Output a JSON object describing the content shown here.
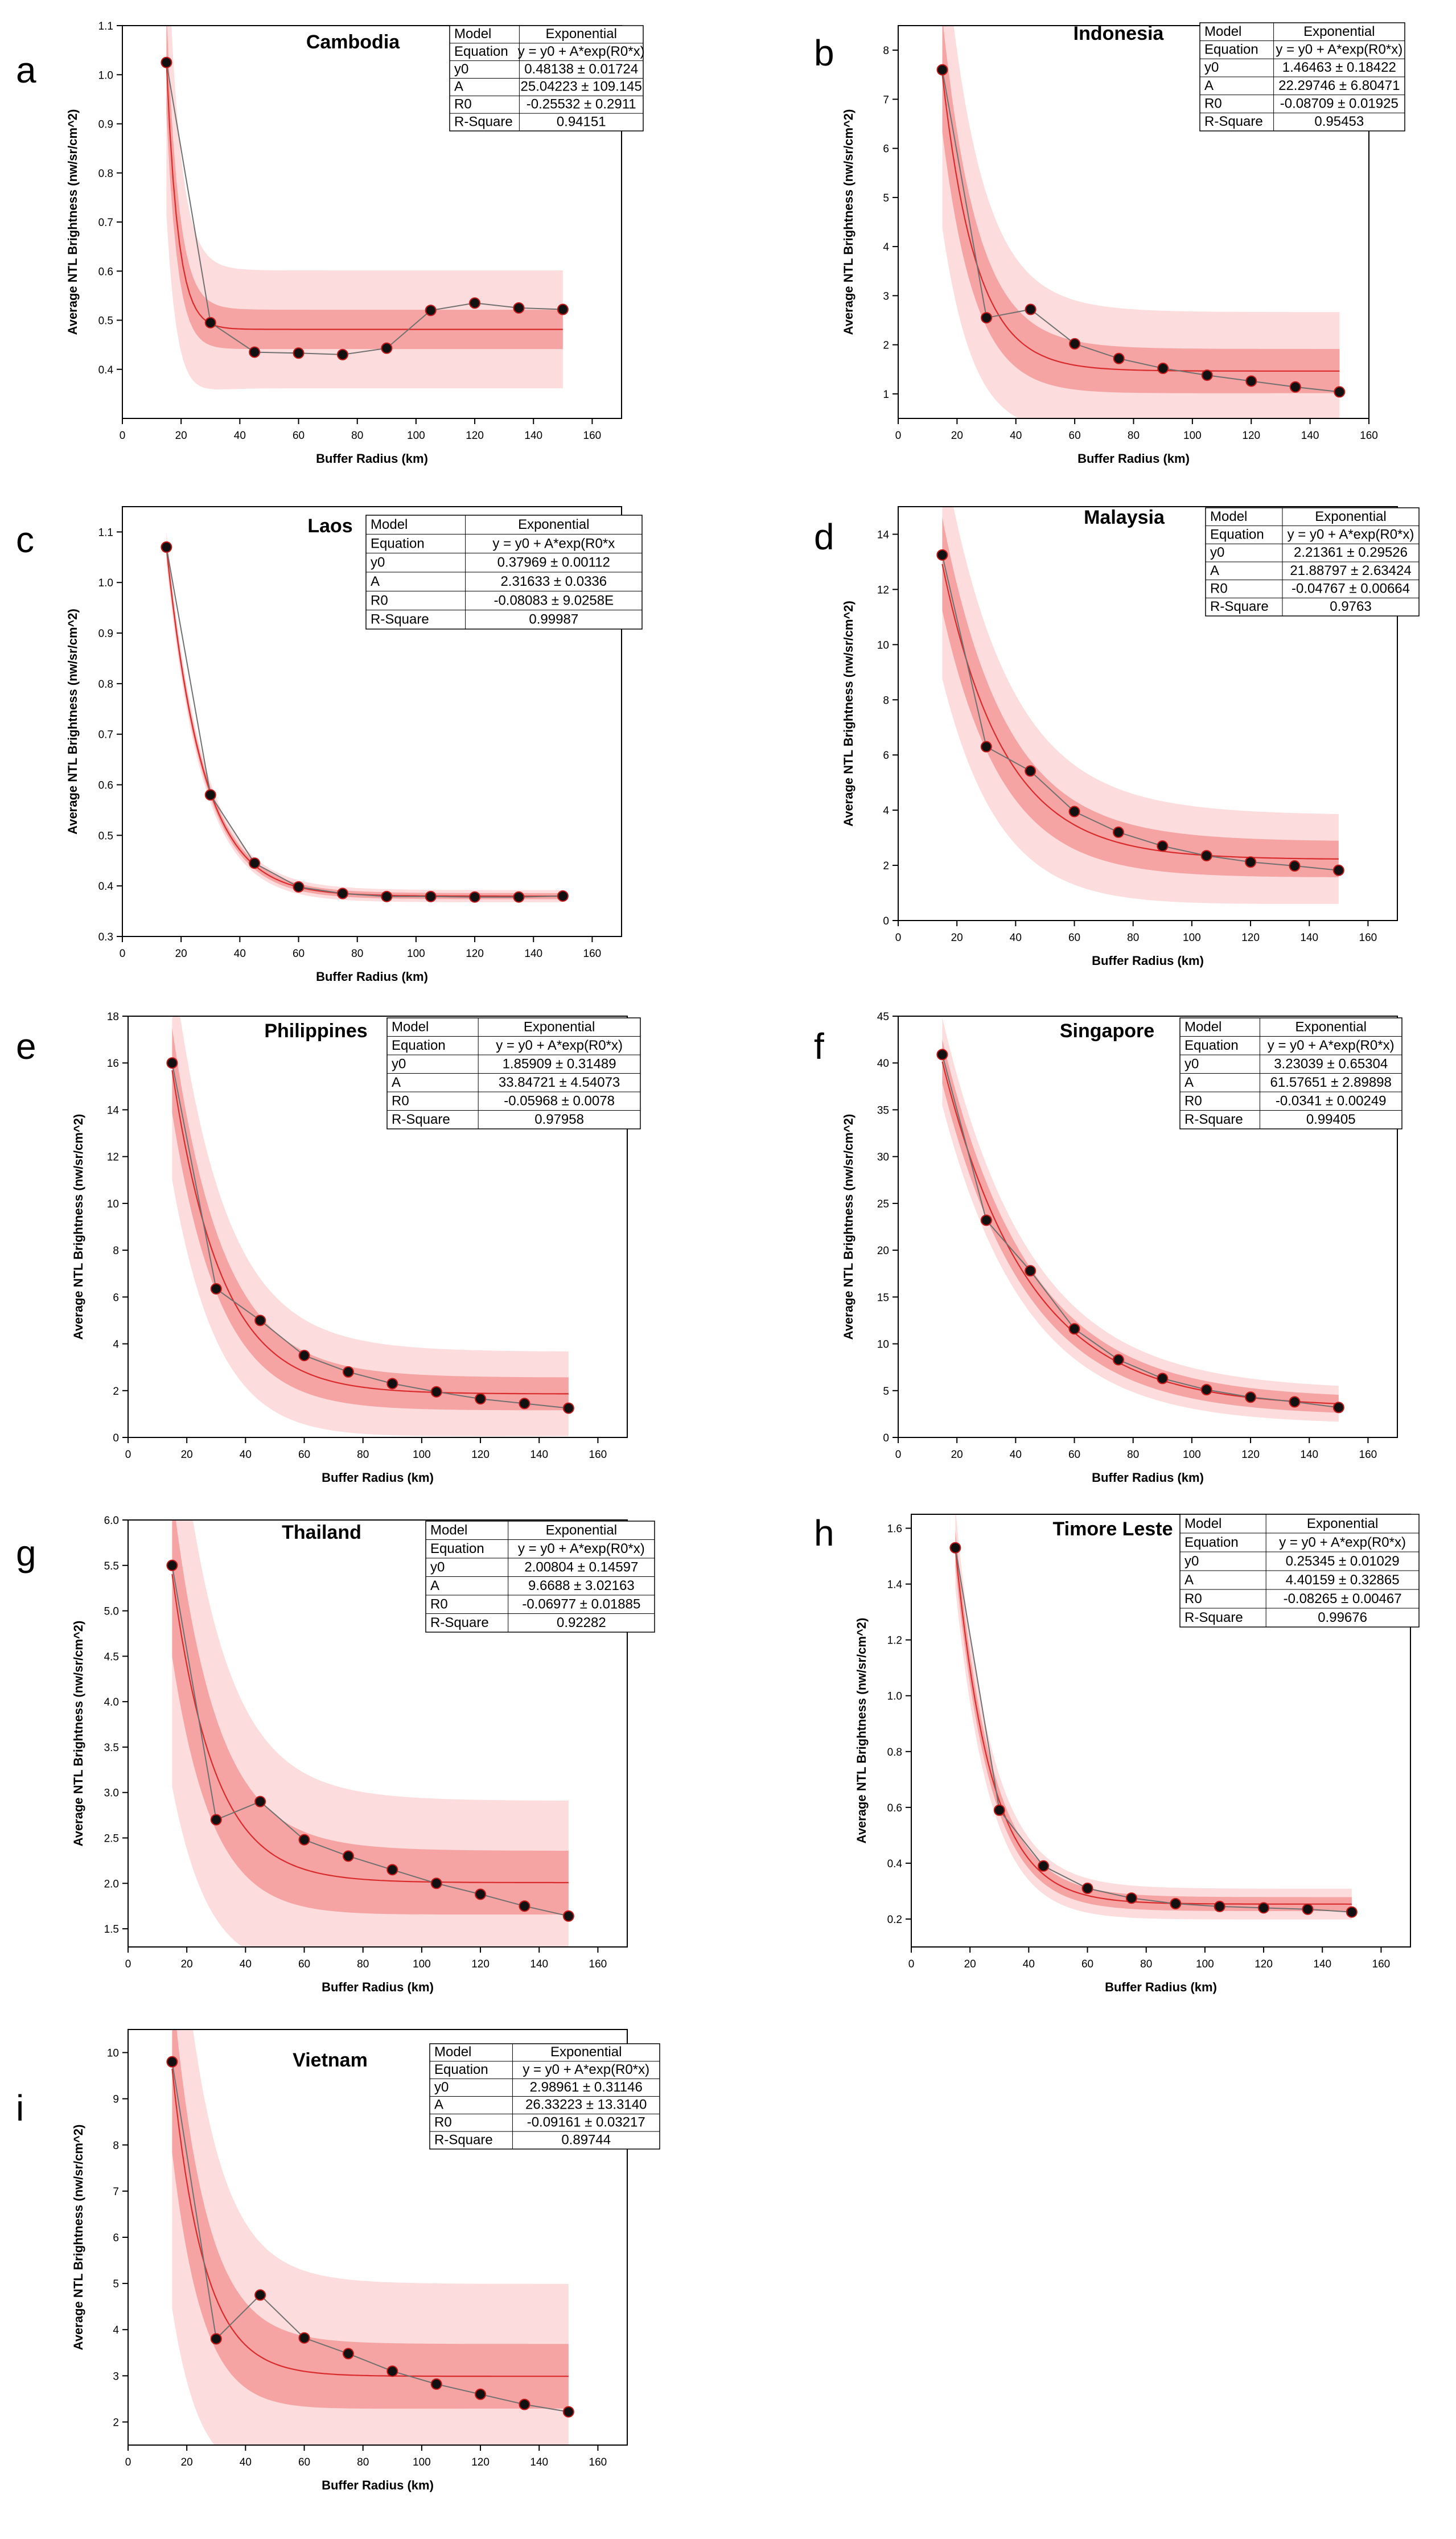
{
  "chart_data": [
    {
      "type": "scatter",
      "panel": "a",
      "title": "Cambodia",
      "xlabel": "Buffer Radius (km)",
      "ylabel": "Average NTL Brightness (nw/sr/cm^2)",
      "xlim": [
        0,
        170
      ],
      "ylim": [
        0.3,
        1.1
      ],
      "xticks": [
        0,
        20,
        40,
        60,
        80,
        100,
        120,
        140,
        160
      ],
      "yticks": [
        0.4,
        0.5,
        0.6,
        0.7,
        0.8,
        0.9,
        1.0,
        1.1
      ],
      "yfmt": 1,
      "x": [
        15,
        30,
        45,
        60,
        75,
        90,
        105,
        120,
        135,
        150
      ],
      "y": [
        1.025,
        0.495,
        0.435,
        0.433,
        0.43,
        0.443,
        0.52,
        0.535,
        0.525,
        0.522
      ],
      "fit": {
        "y0": 0.48138,
        "A": 25.04223,
        "R0": -0.25532,
        "confidence": 0.04,
        "prediction": 0.12
      },
      "table": [
        [
          "Model",
          "Exponential"
        ],
        [
          "Equation",
          "y = y0 + A*exp(R0*x)"
        ],
        [
          "y0",
          "0.48138 ± 0.01724"
        ],
        [
          "A",
          "25.04223 ± 109.145"
        ],
        [
          "R0",
          "-0.25532 ± 0.2911"
        ],
        [
          "R-Square",
          "0.94151"
        ]
      ]
    },
    {
      "type": "scatter",
      "panel": "b",
      "title": "Indonesia",
      "xlabel": "Buffer Radius (km)",
      "ylabel": "Average NTL Brightness (nw/sr/cm^2)",
      "xlim": [
        0,
        160
      ],
      "ylim": [
        0.5,
        8.5
      ],
      "xticks": [
        0,
        20,
        40,
        60,
        80,
        100,
        120,
        140,
        160
      ],
      "yticks": [
        1,
        2,
        3,
        4,
        5,
        6,
        7,
        8
      ],
      "yfmt": 0,
      "x": [
        15,
        30,
        45,
        60,
        75,
        90,
        105,
        120,
        135,
        150
      ],
      "y": [
        7.6,
        2.55,
        2.72,
        2.02,
        1.72,
        1.52,
        1.38,
        1.26,
        1.14,
        1.04
      ],
      "fit": {
        "y0": 1.46463,
        "A": 22.29746,
        "R0": -0.08709,
        "confidence": 0.45,
        "prediction": 1.2
      },
      "table": [
        [
          "Model",
          "Exponential"
        ],
        [
          "Equation",
          "y = y0 + A*exp(R0*x)"
        ],
        [
          "y0",
          "1.46463 ± 0.18422"
        ],
        [
          "A",
          "22.29746 ± 6.80471"
        ],
        [
          "R0",
          "-0.08709 ± 0.01925"
        ],
        [
          "R-Square",
          "0.95453"
        ]
      ]
    },
    {
      "type": "scatter",
      "panel": "c",
      "title": "Laos",
      "xlabel": "Buffer Radius (km)",
      "ylabel": "Average NTL Brightness (nw/sr/cm^2)",
      "xlim": [
        0,
        170
      ],
      "ylim": [
        0.3,
        1.15
      ],
      "xticks": [
        0,
        20,
        40,
        60,
        80,
        100,
        120,
        140,
        160
      ],
      "yticks": [
        0.3,
        0.4,
        0.5,
        0.6,
        0.7,
        0.8,
        0.9,
        1.0,
        1.1
      ],
      "yfmt": 1,
      "x": [
        15,
        30,
        45,
        60,
        75,
        90,
        105,
        120,
        135,
        150
      ],
      "y": [
        1.07,
        0.58,
        0.445,
        0.398,
        0.385,
        0.379,
        0.379,
        0.378,
        0.378,
        0.38
      ],
      "fit": {
        "y0": 0.37969,
        "A": 2.31633,
        "R0": -0.08083,
        "confidence": 0.006,
        "prediction": 0.012
      },
      "table": [
        [
          "Model",
          "Exponential"
        ],
        [
          "Equation",
          "y = y0 + A*exp(R0*x"
        ],
        [
          "y0",
          "0.37969 ± 0.00112"
        ],
        [
          "A",
          "2.31633 ± 0.0336"
        ],
        [
          "R0",
          "-0.08083 ± 9.0258E"
        ],
        [
          "R-Square",
          "0.99987"
        ]
      ]
    },
    {
      "type": "scatter",
      "panel": "d",
      "title": "Malaysia",
      "xlabel": "Buffer Radius (km)",
      "ylabel": "Average NTL Brightness (nw/sr/cm^2)",
      "xlim": [
        0,
        170
      ],
      "ylim": [
        0,
        15
      ],
      "xticks": [
        0,
        20,
        40,
        60,
        80,
        100,
        120,
        140,
        160
      ],
      "yticks": [
        0,
        2,
        4,
        6,
        8,
        10,
        12,
        14
      ],
      "yfmt": 0,
      "x": [
        15,
        30,
        45,
        60,
        75,
        90,
        105,
        120,
        135,
        150
      ],
      "y": [
        13.25,
        6.3,
        5.42,
        3.95,
        3.2,
        2.7,
        2.35,
        2.12,
        1.98,
        1.82
      ],
      "fit": {
        "y0": 2.21361,
        "A": 21.88797,
        "R0": -0.04767,
        "confidence": 0.65,
        "prediction": 1.6
      },
      "table": [
        [
          "Model",
          "Exponential"
        ],
        [
          "Equation",
          "y = y0 + A*exp(R0*x)"
        ],
        [
          "y0",
          "2.21361 ± 0.29526"
        ],
        [
          "A",
          "21.88797 ± 2.63424"
        ],
        [
          "R0",
          "-0.04767 ± 0.00664"
        ],
        [
          "R-Square",
          "0.9763"
        ]
      ]
    },
    {
      "type": "scatter",
      "panel": "e",
      "title": "Philippines",
      "xlabel": "Buffer Radius (km)",
      "ylabel": "Average NTL Brightness (nw/sr/cm^2)",
      "xlim": [
        0,
        170
      ],
      "ylim": [
        0,
        18
      ],
      "xticks": [
        0,
        20,
        40,
        60,
        80,
        100,
        120,
        140,
        160
      ],
      "yticks": [
        0,
        2,
        4,
        6,
        8,
        10,
        12,
        14,
        16,
        18
      ],
      "yfmt": 0,
      "x": [
        15,
        30,
        45,
        60,
        75,
        90,
        105,
        120,
        135,
        150
      ],
      "y": [
        16.0,
        6.35,
        5.0,
        3.5,
        2.8,
        2.3,
        1.95,
        1.65,
        1.45,
        1.25
      ],
      "fit": {
        "y0": 1.85909,
        "A": 33.84721,
        "R0": -0.05968,
        "confidence": 0.7,
        "prediction": 1.8
      },
      "table": [
        [
          "Model",
          "Exponential"
        ],
        [
          "Equation",
          "y = y0 + A*exp(R0*x)"
        ],
        [
          "y0",
          "1.85909 ± 0.31489"
        ],
        [
          "A",
          "33.84721 ± 4.54073"
        ],
        [
          "R0",
          "-0.05968 ± 0.0078"
        ],
        [
          "R-Square",
          "0.97958"
        ]
      ]
    },
    {
      "type": "scatter",
      "panel": "f",
      "title": "Singapore",
      "xlabel": "Buffer Radius (km)",
      "ylabel": "Average NTL Brightness (nw/sr/cm^2)",
      "xlim": [
        0,
        170
      ],
      "ylim": [
        0,
        45
      ],
      "xticks": [
        0,
        20,
        40,
        60,
        80,
        100,
        120,
        140,
        160
      ],
      "yticks": [
        0,
        5,
        10,
        15,
        20,
        25,
        30,
        35,
        40,
        45
      ],
      "yfmt": 0,
      "x": [
        15,
        30,
        45,
        60,
        75,
        90,
        105,
        120,
        135,
        150
      ],
      "y": [
        40.9,
        23.2,
        17.8,
        11.6,
        8.3,
        6.3,
        5.1,
        4.3,
        3.8,
        3.2
      ],
      "fit": {
        "y0": 3.23039,
        "A": 61.57651,
        "R0": -0.0341,
        "confidence": 0.9,
        "prediction": 1.8
      },
      "table": [
        [
          "Model",
          "Exponential"
        ],
        [
          "Equation",
          "y = y0 + A*exp(R0*x)"
        ],
        [
          "y0",
          "3.23039 ± 0.65304"
        ],
        [
          "A",
          "61.57651 ± 2.89898"
        ],
        [
          "R0",
          "-0.0341 ± 0.00249"
        ],
        [
          "R-Square",
          "0.99405"
        ]
      ]
    },
    {
      "type": "scatter",
      "panel": "g",
      "title": "Thailand",
      "xlabel": "Buffer Radius (km)",
      "ylabel": "Average NTL Brightness (nw/sr/cm^2)",
      "xlim": [
        0,
        170
      ],
      "ylim": [
        1.3,
        6.0
      ],
      "xticks": [
        0,
        20,
        40,
        60,
        80,
        100,
        120,
        140,
        160
      ],
      "yticks": [
        1.5,
        2.0,
        2.5,
        3.0,
        3.5,
        4.0,
        4.5,
        5.0,
        5.5,
        6.0
      ],
      "yfmt": 1,
      "x": [
        15,
        30,
        45,
        60,
        75,
        90,
        105,
        120,
        135,
        150
      ],
      "y": [
        5.5,
        2.7,
        2.9,
        2.48,
        2.3,
        2.15,
        2.0,
        1.88,
        1.75,
        1.64
      ],
      "fit": {
        "y0": 2.00804,
        "A": 9.6688,
        "R0": -0.06977,
        "confidence": 0.35,
        "prediction": 0.9
      },
      "table": [
        [
          "Model",
          "Exponential"
        ],
        [
          "Equation",
          "y = y0 + A*exp(R0*x)"
        ],
        [
          "y0",
          "2.00804 ± 0.14597"
        ],
        [
          "A",
          "9.6688 ± 3.02163"
        ],
        [
          "R0",
          "-0.06977 ± 0.01885"
        ],
        [
          "R-Square",
          "0.92282"
        ]
      ]
    },
    {
      "type": "scatter",
      "panel": "h",
      "title": "Timore Leste",
      "xlabel": "Buffer Radius (km)",
      "ylabel": "Average NTL Brightness (nw/sr/cm^2)",
      "xlim": [
        0,
        170
      ],
      "ylim": [
        0.1,
        1.65
      ],
      "xticks": [
        0,
        20,
        40,
        60,
        80,
        100,
        120,
        140,
        160
      ],
      "yticks": [
        0.2,
        0.4,
        0.6,
        0.8,
        1.0,
        1.2,
        1.4,
        1.6
      ],
      "yfmt": 1,
      "x": [
        15,
        30,
        45,
        60,
        75,
        90,
        105,
        120,
        135,
        150
      ],
      "y": [
        1.53,
        0.59,
        0.39,
        0.31,
        0.275,
        0.255,
        0.245,
        0.24,
        0.235,
        0.225
      ],
      "fit": {
        "y0": 0.25345,
        "A": 4.40159,
        "R0": -0.08265,
        "confidence": 0.025,
        "prediction": 0.055
      },
      "table": [
        [
          "Model",
          "Exponential"
        ],
        [
          "Equation",
          "y = y0 + A*exp(R0*x)"
        ],
        [
          "y0",
          "0.25345 ± 0.01029"
        ],
        [
          "A",
          "4.40159 ± 0.32865"
        ],
        [
          "R0",
          "-0.08265 ± 0.00467"
        ],
        [
          "R-Square",
          "0.99676"
        ]
      ]
    },
    {
      "type": "scatter",
      "panel": "i",
      "title": "Vietnam",
      "xlabel": "Buffer Radius (km)",
      "ylabel": "Average NTL Brightness (nw/sr/cm^2)",
      "xlim": [
        0,
        170
      ],
      "ylim": [
        1.5,
        10.5
      ],
      "xticks": [
        0,
        20,
        40,
        60,
        80,
        100,
        120,
        140,
        160
      ],
      "yticks": [
        2,
        3,
        4,
        5,
        6,
        7,
        8,
        9,
        10
      ],
      "yfmt": 0,
      "x": [
        15,
        30,
        45,
        60,
        75,
        90,
        105,
        120,
        135,
        150
      ],
      "y": [
        9.8,
        3.8,
        4.75,
        3.82,
        3.48,
        3.1,
        2.82,
        2.6,
        2.38,
        2.22
      ],
      "fit": {
        "y0": 2.98961,
        "A": 26.33223,
        "R0": -0.09161,
        "confidence": 0.7,
        "prediction": 2.0
      },
      "table": [
        [
          "Model",
          "Exponential"
        ],
        [
          "Equation",
          "y = y0 + A*exp(R0*x)"
        ],
        [
          "y0",
          "2.98961 ± 0.31146"
        ],
        [
          "A",
          "26.33223 ± 13.3140"
        ],
        [
          "R0",
          "-0.09161 ± 0.03217"
        ],
        [
          "R-Square",
          "0.89744"
        ]
      ]
    }
  ],
  "colors": {
    "prediction_band": "#fcdcdc",
    "confidence_band": "#f5a3a3",
    "fit_line": "#d92b2b",
    "data_line": "#707070",
    "marker_fill": "#111111",
    "marker_stroke": "#c01818"
  }
}
